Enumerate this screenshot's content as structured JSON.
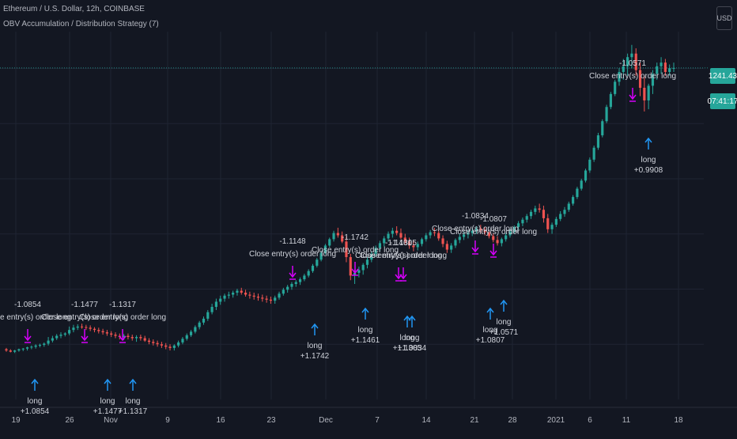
{
  "header": {
    "title": "Ethereum / U.S. Dollar, 12h, COINBASE",
    "study": "OBV Accumulation / Distribution Strategy (7)"
  },
  "currency_button": "USD",
  "last_price": "1241.43",
  "countdown": "07:41:17",
  "colors": {
    "background": "#131722",
    "grid": "#1f2433",
    "up": "#26a69a",
    "down": "#ef5350",
    "entry_arrow": "#2196f3",
    "exit_arrow": "#d500f9",
    "text": "#d1d4dc"
  },
  "chart_data": {
    "type": "candlestick",
    "symbol": "ETH/USD",
    "interval": "12h",
    "exchange": "COINBASE",
    "x_tick_labels": [
      "19",
      "26",
      "Nov",
      "9",
      "16",
      "23",
      "Dec",
      "7",
      "14",
      "21",
      "28",
      "2021",
      "6",
      "11",
      "18"
    ],
    "y_range": [
      300,
      1450
    ],
    "last_price": 1241.43,
    "candles_ohlc": [
      [
        372,
        374,
        368,
        370
      ],
      [
        370,
        372,
        367,
        368
      ],
      [
        368,
        371,
        366,
        370
      ],
      [
        370,
        373,
        368,
        372
      ],
      [
        372,
        374,
        369,
        373
      ],
      [
        373,
        376,
        370,
        375
      ],
      [
        375,
        378,
        372,
        376
      ],
      [
        376,
        380,
        373,
        378
      ],
      [
        378,
        381,
        375,
        379
      ],
      [
        379,
        383,
        376,
        381
      ],
      [
        381,
        392,
        378,
        386
      ],
      [
        386,
        394,
        383,
        390
      ],
      [
        390,
        397,
        387,
        394
      ],
      [
        394,
        400,
        390,
        396
      ],
      [
        396,
        400,
        393,
        398
      ],
      [
        398,
        410,
        395,
        404
      ],
      [
        404,
        413,
        400,
        408
      ],
      [
        408,
        414,
        404,
        410
      ],
      [
        410,
        415,
        406,
        409
      ],
      [
        409,
        413,
        404,
        408
      ],
      [
        408,
        412,
        402,
        406
      ],
      [
        406,
        409,
        400,
        404
      ],
      [
        404,
        408,
        398,
        402
      ],
      [
        402,
        406,
        396,
        400
      ],
      [
        400,
        404,
        394,
        398
      ],
      [
        398,
        402,
        392,
        396
      ],
      [
        396,
        400,
        390,
        394
      ],
      [
        394,
        398,
        388,
        392
      ],
      [
        392,
        397,
        387,
        394
      ],
      [
        394,
        398,
        388,
        392
      ],
      [
        392,
        396,
        386,
        390
      ],
      [
        390,
        395,
        384,
        392
      ],
      [
        392,
        396,
        386,
        390
      ],
      [
        390,
        394,
        384,
        386
      ],
      [
        386,
        390,
        380,
        384
      ],
      [
        384,
        388,
        378,
        382
      ],
      [
        382,
        386,
        376,
        380
      ],
      [
        380,
        384,
        374,
        378
      ],
      [
        378,
        382,
        372,
        376
      ],
      [
        376,
        380,
        370,
        374
      ],
      [
        374,
        380,
        370,
        378
      ],
      [
        378,
        386,
        375,
        383
      ],
      [
        383,
        392,
        380,
        389
      ],
      [
        389,
        398,
        386,
        395
      ],
      [
        395,
        404,
        392,
        401
      ],
      [
        401,
        412,
        398,
        409
      ],
      [
        409,
        420,
        405,
        417
      ],
      [
        417,
        428,
        413,
        424
      ],
      [
        424,
        440,
        420,
        436
      ],
      [
        436,
        452,
        432,
        446
      ],
      [
        446,
        462,
        440,
        456
      ],
      [
        456,
        468,
        450,
        462
      ],
      [
        462,
        472,
        456,
        468
      ],
      [
        468,
        476,
        462,
        470
      ],
      [
        470,
        478,
        464,
        474
      ],
      [
        474,
        482,
        468,
        478
      ],
      [
        478,
        484,
        470,
        474
      ],
      [
        474,
        480,
        466,
        470
      ],
      [
        470,
        476,
        462,
        468
      ],
      [
        468,
        474,
        460,
        466
      ],
      [
        466,
        472,
        458,
        464
      ],
      [
        464,
        470,
        456,
        462
      ],
      [
        462,
        468,
        454,
        460
      ],
      [
        460,
        466,
        452,
        458
      ],
      [
        458,
        468,
        452,
        464
      ],
      [
        464,
        476,
        460,
        472
      ],
      [
        472,
        484,
        468,
        480
      ],
      [
        480,
        490,
        474,
        486
      ],
      [
        486,
        496,
        480,
        492
      ],
      [
        492,
        500,
        486,
        496
      ],
      [
        496,
        506,
        490,
        502
      ],
      [
        502,
        514,
        498,
        510
      ],
      [
        510,
        524,
        506,
        520
      ],
      [
        520,
        536,
        516,
        532
      ],
      [
        532,
        550,
        528,
        546
      ],
      [
        546,
        566,
        542,
        562
      ],
      [
        562,
        584,
        558,
        580
      ],
      [
        580,
        600,
        576,
        596
      ],
      [
        596,
        618,
        590,
        612
      ],
      [
        612,
        626,
        600,
        606
      ],
      [
        606,
        616,
        586,
        590
      ],
      [
        590,
        604,
        540,
        552
      ],
      [
        552,
        560,
        500,
        510
      ],
      [
        510,
        524,
        492,
        516
      ],
      [
        516,
        530,
        506,
        522
      ],
      [
        522,
        538,
        512,
        534
      ],
      [
        534,
        552,
        526,
        546
      ],
      [
        546,
        566,
        540,
        560
      ],
      [
        560,
        580,
        554,
        574
      ],
      [
        574,
        592,
        566,
        586
      ],
      [
        586,
        604,
        578,
        598
      ],
      [
        598,
        616,
        590,
        610
      ],
      [
        610,
        626,
        600,
        618
      ],
      [
        618,
        630,
        606,
        612
      ],
      [
        612,
        624,
        596,
        600
      ],
      [
        600,
        610,
        584,
        590
      ],
      [
        590,
        600,
        572,
        580
      ],
      [
        580,
        592,
        566,
        576
      ],
      [
        576,
        590,
        568,
        584
      ],
      [
        584,
        600,
        578,
        596
      ],
      [
        596,
        612,
        590,
        606
      ],
      [
        606,
        620,
        598,
        614
      ],
      [
        614,
        626,
        604,
        612
      ],
      [
        612,
        618,
        592,
        598
      ],
      [
        598,
        606,
        576,
        584
      ],
      [
        584,
        592,
        562,
        570
      ],
      [
        570,
        586,
        562,
        580
      ],
      [
        580,
        598,
        574,
        594
      ],
      [
        594,
        610,
        586,
        602
      ],
      [
        602,
        616,
        594,
        608
      ],
      [
        608,
        620,
        598,
        612
      ],
      [
        612,
        624,
        604,
        618
      ],
      [
        618,
        630,
        610,
        624
      ],
      [
        624,
        634,
        612,
        620
      ],
      [
        620,
        628,
        606,
        614
      ],
      [
        614,
        620,
        598,
        604
      ],
      [
        604,
        612,
        588,
        594
      ],
      [
        594,
        604,
        580,
        586
      ],
      [
        586,
        600,
        578,
        596
      ],
      [
        596,
        612,
        590,
        606
      ],
      [
        606,
        622,
        600,
        616
      ],
      [
        616,
        632,
        610,
        628
      ],
      [
        628,
        644,
        620,
        638
      ],
      [
        638,
        654,
        630,
        648
      ],
      [
        648,
        664,
        640,
        658
      ],
      [
        658,
        676,
        650,
        670
      ],
      [
        670,
        688,
        662,
        680
      ],
      [
        680,
        694,
        668,
        676
      ],
      [
        676,
        688,
        640,
        652
      ],
      [
        652,
        664,
        612,
        622
      ],
      [
        622,
        640,
        610,
        634
      ],
      [
        634,
        656,
        628,
        650
      ],
      [
        650,
        672,
        644,
        664
      ],
      [
        664,
        684,
        656,
        676
      ],
      [
        676,
        700,
        670,
        694
      ],
      [
        694,
        720,
        688,
        714
      ],
      [
        714,
        746,
        708,
        740
      ],
      [
        740,
        772,
        734,
        766
      ],
      [
        766,
        806,
        760,
        800
      ],
      [
        800,
        846,
        792,
        838
      ],
      [
        838,
        890,
        830,
        882
      ],
      [
        882,
        940,
        874,
        930
      ],
      [
        930,
        996,
        922,
        988
      ],
      [
        988,
        1060,
        980,
        1050
      ],
      [
        1050,
        1120,
        1040,
        1110
      ],
      [
        1110,
        1180,
        1100,
        1170
      ],
      [
        1170,
        1240,
        1150,
        1220
      ],
      [
        1220,
        1290,
        1180,
        1250
      ],
      [
        1250,
        1320,
        1200,
        1300
      ],
      [
        1300,
        1370,
        1240,
        1320
      ],
      [
        1320,
        1350,
        1200,
        1230
      ],
      [
        1230,
        1270,
        1100,
        1140
      ],
      [
        1140,
        1200,
        1030,
        1080
      ],
      [
        1080,
        1160,
        1040,
        1150
      ],
      [
        1150,
        1230,
        1110,
        1210
      ],
      [
        1210,
        1270,
        1180,
        1250
      ],
      [
        1250,
        1300,
        1210,
        1270
      ],
      [
        1270,
        1290,
        1200,
        1220
      ],
      [
        1220,
        1260,
        1200,
        1240
      ],
      [
        1240,
        1270,
        1220,
        1241
      ]
    ],
    "signals": [
      {
        "type": "entry",
        "labels": [
          "long",
          "+1.0854"
        ]
      },
      {
        "type": "exit",
        "labels": [
          "-1.0854",
          "Close entry(s) order long"
        ]
      },
      {
        "type": "entry",
        "labels": [
          "long",
          "+1.1477"
        ]
      },
      {
        "type": "exit",
        "labels": [
          "-1.1477",
          "Close entry(s) order long"
        ]
      },
      {
        "type": "entry",
        "labels": [
          "long",
          "+1.1317"
        ]
      },
      {
        "type": "exit",
        "labels": [
          "-1.1317",
          "Close entry(s) order long"
        ]
      },
      {
        "type": "exit",
        "labels": [
          "-1.1148",
          "Close entry(s) order long"
        ]
      },
      {
        "type": "entry",
        "labels": [
          "long",
          "+1.1742"
        ]
      },
      {
        "type": "exit",
        "labels": [
          "-1.1742",
          "Close entry(s) order long"
        ]
      },
      {
        "type": "entry",
        "labels": [
          "long",
          "+1.1461"
        ]
      },
      {
        "type": "exit",
        "labels": [
          "-1.1461",
          "Close entry(s) order long"
        ]
      },
      {
        "type": "entry",
        "labels": [
          "long",
          "+1.1305"
        ]
      },
      {
        "type": "exit",
        "labels": [
          "-1.1305",
          "Close entry(s) order long"
        ]
      },
      {
        "type": "entry",
        "labels": [
          "long",
          "+1.0834"
        ]
      },
      {
        "type": "exit",
        "labels": [
          "-1.0834",
          "Close entry(s) order long"
        ]
      },
      {
        "type": "entry",
        "labels": [
          "long",
          "+1.0807"
        ]
      },
      {
        "type": "exit",
        "labels": [
          "-1.0807",
          "Close entry(s) order long"
        ]
      },
      {
        "type": "entry",
        "labels": [
          "long",
          "+1.0571"
        ]
      },
      {
        "type": "exit",
        "labels": [
          "-1.0571",
          "Close entry(s) order long"
        ]
      },
      {
        "type": "entry",
        "labels": [
          "long",
          "+0.9908"
        ]
      }
    ]
  }
}
